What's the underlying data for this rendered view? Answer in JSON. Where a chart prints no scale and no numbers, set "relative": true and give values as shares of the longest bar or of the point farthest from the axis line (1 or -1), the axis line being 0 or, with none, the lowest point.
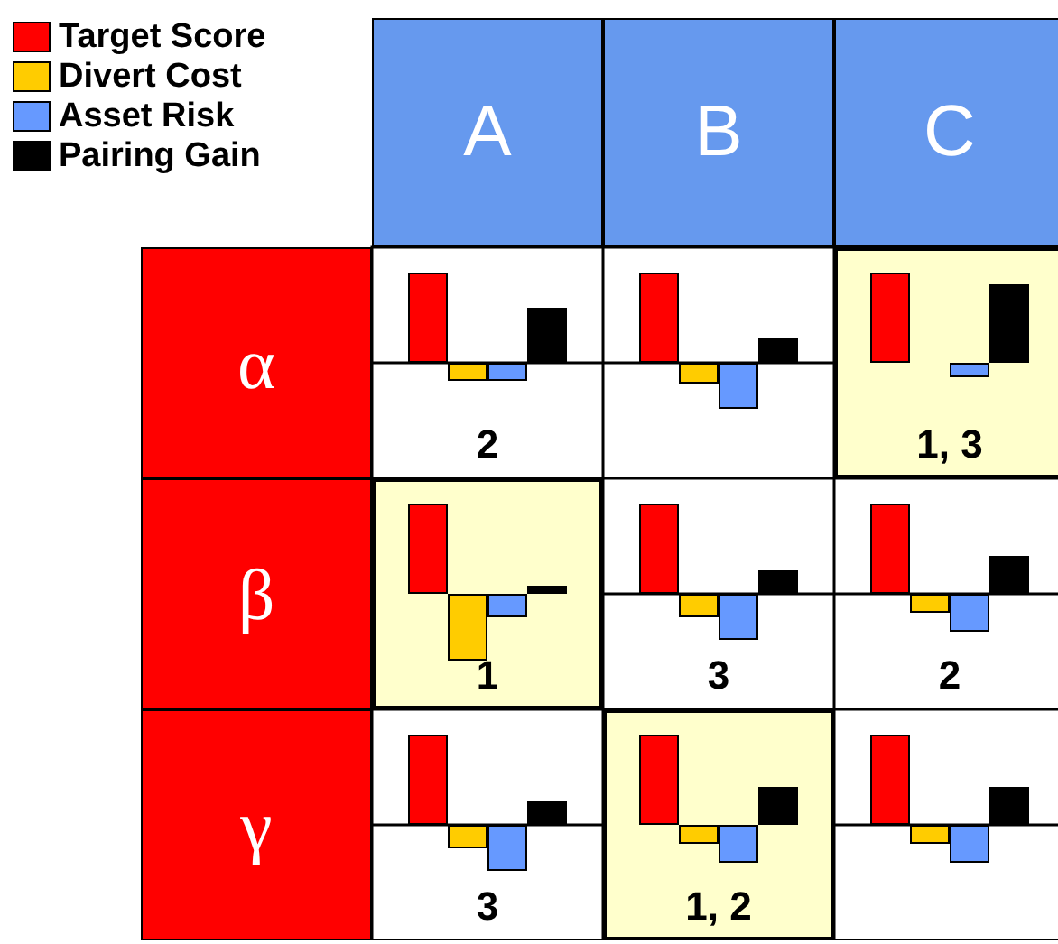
{
  "chart_data": [
    {
      "type": "other",
      "annotations": [
        "A",
        "B",
        "C",
        "α",
        "β",
        "γ"
      ]
    },
    {
      "type": "bar",
      "relative": true,
      "categories": [
        null
      ],
      "legend": "top left",
      "annotations": [
        "2"
      ],
      "series": [
        {
          "name": "Target Score",
          "color": "#ff0000",
          "values": [
            1
          ]
        },
        {
          "name": "Divert Cost",
          "color": "#ffcc00",
          "values": [
            -0.2
          ]
        },
        {
          "name": "Asset Risk",
          "color": "#6699ff",
          "values": [
            -0.2
          ]
        },
        {
          "name": "Pairing Gain",
          "color": "#000000",
          "values": [
            0.61
          ]
        }
      ]
    },
    {
      "type": "bar",
      "relative": true,
      "categories": [
        null
      ],
      "series": [
        {
          "color": "#ff0000",
          "values": [
            1
          ]
        },
        {
          "color": "#ffcc00",
          "values": [
            -0.23
          ]
        },
        {
          "color": "#6699ff",
          "values": [
            -0.51
          ]
        },
        {
          "color": "#000000",
          "values": [
            0.28
          ]
        }
      ]
    },
    {
      "type": "bar",
      "relative": true,
      "categories": [
        null
      ],
      "annotations": [
        "1, 3"
      ],
      "bands": [
        {
          "axis": "y",
          "from": -1.28,
          "to": 1.28,
          "color": "#ffffcc"
        }
      ],
      "series": [
        {
          "color": "#ff0000",
          "values": [
            1
          ]
        },
        {
          "color": "#ffcc00",
          "values": [
            null
          ]
        },
        {
          "color": "#6699ff",
          "values": [
            -0.16
          ]
        },
        {
          "color": "#000000",
          "values": [
            0.87
          ]
        }
      ]
    },
    {
      "type": "bar",
      "relative": true,
      "categories": [
        null
      ],
      "annotations": [
        "1"
      ],
      "bands": [
        {
          "axis": "y",
          "from": -1.28,
          "to": 1.28,
          "color": "#ffffcc"
        }
      ],
      "series": [
        {
          "color": "#ff0000",
          "values": [
            1
          ]
        },
        {
          "color": "#ffcc00",
          "values": [
            -0.74
          ]
        },
        {
          "color": "#6699ff",
          "values": [
            -0.26
          ]
        },
        {
          "color": "#000000",
          "values": [
            0.09
          ]
        }
      ]
    },
    {
      "type": "bar",
      "relative": true,
      "categories": [
        null
      ],
      "annotations": [
        "3"
      ],
      "series": [
        {
          "color": "#ff0000",
          "values": [
            1
          ]
        },
        {
          "color": "#ffcc00",
          "values": [
            -0.26
          ]
        },
        {
          "color": "#6699ff",
          "values": [
            -0.51
          ]
        },
        {
          "color": "#000000",
          "values": [
            0.26
          ]
        }
      ]
    },
    {
      "type": "bar",
      "relative": true,
      "categories": [
        null
      ],
      "annotations": [
        "2"
      ],
      "series": [
        {
          "color": "#ff0000",
          "values": [
            1
          ]
        },
        {
          "color": "#ffcc00",
          "values": [
            -0.21
          ]
        },
        {
          "color": "#6699ff",
          "values": [
            -0.42
          ]
        },
        {
          "color": "#000000",
          "values": [
            0.42
          ]
        }
      ]
    },
    {
      "type": "bar",
      "relative": true,
      "categories": [
        null
      ],
      "annotations": [
        "3"
      ],
      "series": [
        {
          "color": "#ff0000",
          "values": [
            1
          ]
        },
        {
          "color": "#ffcc00",
          "values": [
            -0.26
          ]
        },
        {
          "color": "#6699ff",
          "values": [
            -0.51
          ]
        },
        {
          "color": "#000000",
          "values": [
            0.26
          ]
        }
      ]
    },
    {
      "type": "bar",
      "relative": true,
      "categories": [
        null
      ],
      "annotations": [
        "1, 2"
      ],
      "bands": [
        {
          "axis": "y",
          "from": -1.28,
          "to": 1.28,
          "color": "#ffffcc"
        }
      ],
      "series": [
        {
          "color": "#ff0000",
          "values": [
            1
          ]
        },
        {
          "color": "#ffcc00",
          "values": [
            -0.21
          ]
        },
        {
          "color": "#6699ff",
          "values": [
            -0.42
          ]
        },
        {
          "color": "#000000",
          "values": [
            0.42
          ]
        }
      ]
    },
    {
      "type": "bar",
      "relative": true,
      "categories": [
        null
      ],
      "series": [
        {
          "color": "#ff0000",
          "values": [
            1
          ]
        },
        {
          "color": "#ffcc00",
          "values": [
            -0.21
          ]
        },
        {
          "color": "#6699ff",
          "values": [
            -0.42
          ]
        },
        {
          "color": "#000000",
          "values": [
            0.42
          ]
        }
      ]
    }
  ]
}
